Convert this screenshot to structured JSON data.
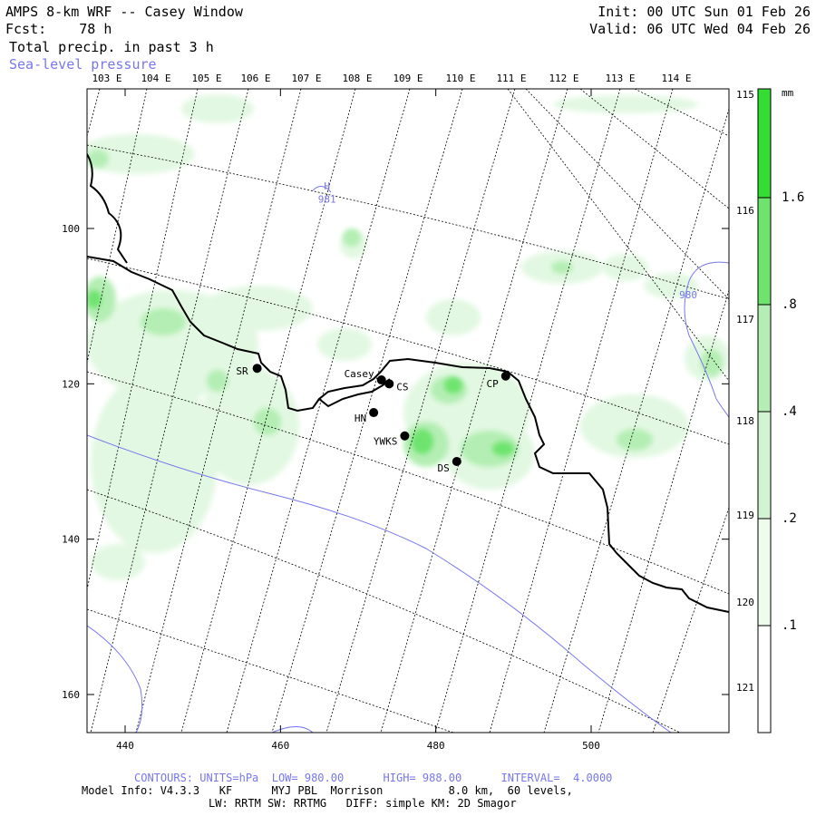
{
  "header": {
    "title": "AMPS 8-km WRF -- Casey Window",
    "forecast": "Fcst:    78 h",
    "field": "Total precip. in past 3 h",
    "overlay": "Sea-level pressure",
    "init": "Init: 00 UTC Sun 01 Feb 26",
    "valid": "Valid: 06 UTC Wed 04 Feb 26"
  },
  "longitude_labels": [
    "103 E",
    "104 E",
    "105 E",
    "106 E",
    "107 E",
    "108 E",
    "109 E",
    "110 E",
    "111 E",
    "112 E",
    "113 E",
    "114 E"
  ],
  "right_lon_labels": [
    "115 E",
    "116 E",
    "117 E",
    "118 E",
    "119 E",
    "120 E",
    "121 E"
  ],
  "x_ticks": [
    "440",
    "460",
    "480",
    "500"
  ],
  "y_ticks": [
    "100",
    "120",
    "140",
    "160"
  ],
  "stations": [
    {
      "name": "SR",
      "x": 457,
      "y": 118
    },
    {
      "name": "Casey",
      "x": 473,
      "y": 119.5
    },
    {
      "name": "CS",
      "x": 474,
      "y": 120
    },
    {
      "name": "CP",
      "x": 489,
      "y": 119
    },
    {
      "name": "HN",
      "x": 472,
      "y": 123.7
    },
    {
      "name": "YWKS",
      "x": 476,
      "y": 126.7
    },
    {
      "name": "DS",
      "x": 482.7,
      "y": 130
    }
  ],
  "pressure_labels": [
    {
      "text": "H",
      "x": 466,
      "y": 95
    },
    {
      "text": "981",
      "x": 466,
      "y": 96.7
    },
    {
      "text": "980",
      "x": 512.5,
      "y": 109
    }
  ],
  "colorbar": {
    "unit": "mm",
    "labels": [
      "1.6",
      ".8",
      ".4",
      ".2",
      ".1"
    ]
  },
  "footer": {
    "contours": "CONTOURS: UNITS=hPa  LOW= 980.00      HIGH= 988.00      INTERVAL=  4.0000",
    "model_info": "Model Info: V4.3.3   KF      MYJ PBL  Morrison          8.0 km,  60 levels,",
    "schemes": "LW: RRTM SW: RRTMG   DIFF: simple KM: 2D Smagor"
  },
  "colors": {
    "frame": "#000000",
    "coast": "#000000",
    "isobar": "#7777ee",
    "green_light": "#e2f8e2",
    "green_mid": "#b4eeb4",
    "green_strong": "#6ee46e",
    "green_max": "#33dd33"
  }
}
